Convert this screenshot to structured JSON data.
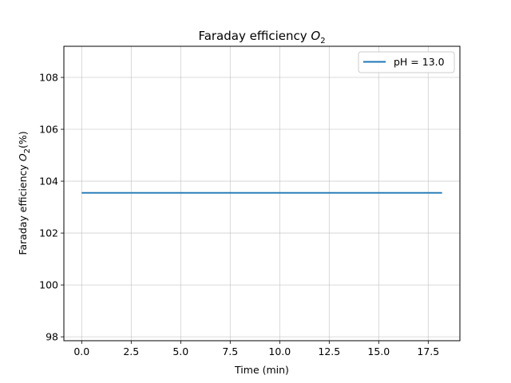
{
  "chart_data": {
    "type": "line",
    "title_main": "Faraday efficiency ",
    "title_var": "O",
    "title_sub": "2",
    "xlabel": "Time (min)",
    "ylabel_main": "Faraday efficiency ",
    "ylabel_var": "O",
    "ylabel_sub": "2",
    "ylabel_tail": "(%)",
    "xlim": [
      -0.9,
      19.1
    ],
    "ylim": [
      97.85,
      109.2
    ],
    "xticks": [
      0.0,
      2.5,
      5.0,
      7.5,
      10.0,
      12.5,
      15.0,
      17.5
    ],
    "xtick_labels": [
      "0.0",
      "2.5",
      "5.0",
      "7.5",
      "10.0",
      "12.5",
      "15.0",
      "17.5"
    ],
    "yticks": [
      98,
      100,
      102,
      104,
      106,
      108
    ],
    "ytick_labels": [
      "98",
      "100",
      "102",
      "104",
      "106",
      "108"
    ],
    "grid": true,
    "legend_position": "top-right",
    "series": [
      {
        "name": "pH = 13.0",
        "color": "#1f77b4",
        "x": [
          0.0,
          18.2
        ],
        "y": [
          103.55,
          103.55
        ]
      }
    ]
  }
}
